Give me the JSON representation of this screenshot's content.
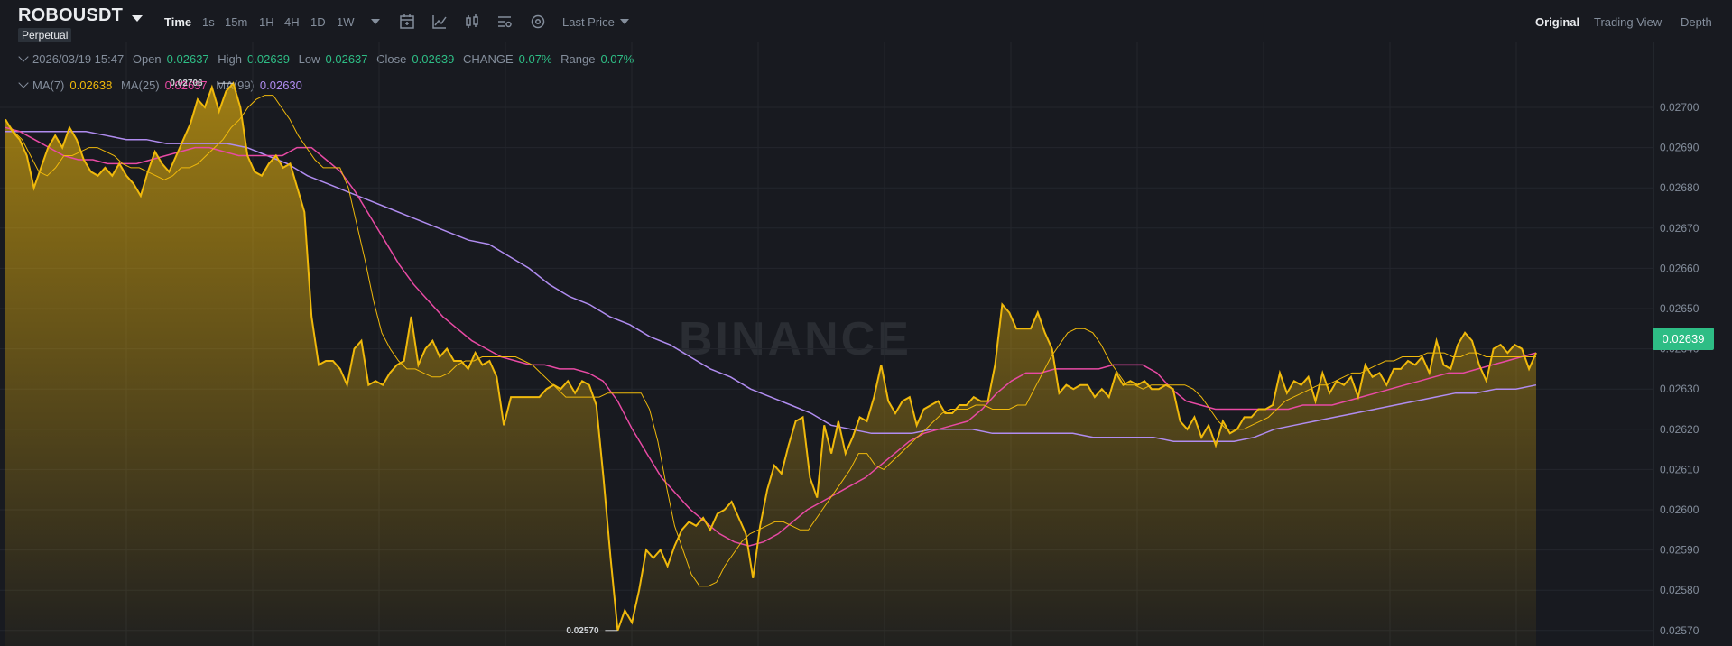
{
  "header": {
    "symbol": "ROBOUSDT",
    "badge": "Perpetual",
    "time_label": "Time",
    "intervals": [
      "1s",
      "15m",
      "1H",
      "4H",
      "1D",
      "1W"
    ],
    "last_price_label": "Last Price",
    "views": [
      "Original",
      "Trading View",
      "Depth"
    ],
    "active_view": "Original"
  },
  "legend": {
    "datetime": "2026/03/19 15:47",
    "open_label": "Open",
    "open": "0.02637",
    "high_label": "High",
    "high": "0.02639",
    "low_label": "Low",
    "low": "0.02637",
    "close_label": "Close",
    "close": "0.02639",
    "change_label": "CHANGE",
    "change": "0.07%",
    "range_label": "Range",
    "range": "0.07%",
    "ma7_label": "MA(7)",
    "ma7": "0.02638",
    "ma25_label": "MA(25)",
    "ma25": "0.02637",
    "ma99_label": "MA(99)",
    "ma99": "0.02630"
  },
  "watermark": "BINANCE",
  "current_price": "0.02639",
  "max_label": "0.02706",
  "min_label": "0.02570",
  "colors": {
    "accent": "#f0b90b",
    "up": "#2ebd85",
    "ma25": "#e84aa4",
    "ma99": "#b08cf0",
    "bg": "#181a20"
  },
  "chart_data": {
    "type": "area",
    "ylim": [
      0.02565,
      0.0271
    ],
    "yticks": [
      "0.02700",
      "0.02690",
      "0.02680",
      "0.02670",
      "0.02660",
      "0.02650",
      "0.02640",
      "0.02630",
      "0.02620",
      "0.02610",
      "0.02600",
      "0.02590",
      "0.02580",
      "0.02570"
    ],
    "price": [
      0.02697,
      0.02694,
      0.02692,
      0.02688,
      0.0268,
      0.02685,
      0.0269,
      0.02693,
      0.0269,
      0.02695,
      0.02692,
      0.02687,
      0.02684,
      0.02683,
      0.02685,
      0.02683,
      0.02686,
      0.02683,
      0.02681,
      0.02678,
      0.02684,
      0.02689,
      0.02686,
      0.02684,
      0.02688,
      0.02692,
      0.02696,
      0.02702,
      0.027,
      0.02705,
      0.02699,
      0.02704,
      0.02706,
      0.027,
      0.02688,
      0.02684,
      0.02683,
      0.02686,
      0.02688,
      0.02685,
      0.02686,
      0.0268,
      0.02674,
      0.02648,
      0.02636,
      0.02637,
      0.02637,
      0.02635,
      0.02631,
      0.0264,
      0.02642,
      0.02631,
      0.02632,
      0.02631,
      0.02634,
      0.02636,
      0.02637,
      0.02648,
      0.02636,
      0.0264,
      0.02642,
      0.02638,
      0.0264,
      0.02637,
      0.02637,
      0.02635,
      0.02639,
      0.02636,
      0.02637,
      0.02633,
      0.02621,
      0.02628,
      0.02628,
      0.02628,
      0.02628,
      0.02628,
      0.0263,
      0.02631,
      0.0263,
      0.02632,
      0.02629,
      0.02632,
      0.02631,
      0.02626,
      0.02608,
      0.02588,
      0.0257,
      0.02575,
      0.02572,
      0.0258,
      0.0259,
      0.02588,
      0.0259,
      0.02586,
      0.02591,
      0.02595,
      0.02597,
      0.02596,
      0.02598,
      0.02595,
      0.02599,
      0.026,
      0.02602,
      0.02598,
      0.02594,
      0.02583,
      0.02596,
      0.02605,
      0.02611,
      0.02609,
      0.02616,
      0.02622,
      0.02623,
      0.02608,
      0.02603,
      0.02621,
      0.02614,
      0.02622,
      0.02614,
      0.02618,
      0.02623,
      0.02622,
      0.02628,
      0.02636,
      0.02627,
      0.02624,
      0.02627,
      0.02628,
      0.02621,
      0.02625,
      0.02626,
      0.02627,
      0.02624,
      0.02624,
      0.02626,
      0.02626,
      0.02628,
      0.02627,
      0.02627,
      0.02636,
      0.02651,
      0.02649,
      0.02645,
      0.02645,
      0.02645,
      0.02649,
      0.02644,
      0.0264,
      0.02629,
      0.02631,
      0.0263,
      0.02631,
      0.02631,
      0.02628,
      0.0263,
      0.02628,
      0.02634,
      0.02631,
      0.02632,
      0.02631,
      0.02632,
      0.0263,
      0.0263,
      0.02631,
      0.0263,
      0.02622,
      0.0262,
      0.02623,
      0.02618,
      0.02621,
      0.02616,
      0.02622,
      0.02619,
      0.0262,
      0.02623,
      0.02623,
      0.02625,
      0.02625,
      0.02626,
      0.02634,
      0.02629,
      0.02632,
      0.02631,
      0.02633,
      0.02627,
      0.02634,
      0.02629,
      0.02632,
      0.02631,
      0.02633,
      0.02628,
      0.02636,
      0.02633,
      0.02634,
      0.02631,
      0.02635,
      0.02635,
      0.02637,
      0.02636,
      0.02638,
      0.02634,
      0.02642,
      0.02636,
      0.02635,
      0.02641,
      0.02644,
      0.02642,
      0.02636,
      0.02632,
      0.0264,
      0.02641,
      0.02639,
      0.02641,
      0.0264,
      0.02635,
      0.02639
    ],
    "ma7": [
      0.02697,
      0.02694,
      0.02692,
      0.02688,
      0.02684,
      0.02683,
      0.02685,
      0.02688,
      0.02688,
      0.02689,
      0.0269,
      0.0269,
      0.02689,
      0.02688,
      0.02686,
      0.02685,
      0.02685,
      0.02684,
      0.02683,
      0.02682,
      0.02683,
      0.02685,
      0.02685,
      0.02686,
      0.02688,
      0.0269,
      0.02692,
      0.02695,
      0.02697,
      0.027,
      0.02702,
      0.02703,
      0.02703,
      0.027,
      0.02697,
      0.02693,
      0.0269,
      0.02687,
      0.02685,
      0.02685,
      0.02685,
      0.0268,
      0.02671,
      0.02662,
      0.02652,
      0.02644,
      0.0264,
      0.02637,
      0.02635,
      0.02635,
      0.02634,
      0.02633,
      0.02633,
      0.02634,
      0.02636,
      0.02637,
      0.02637,
      0.02638,
      0.02638,
      0.02638,
      0.02638,
      0.02638,
      0.02637,
      0.02636,
      0.02634,
      0.02632,
      0.0263,
      0.02628,
      0.02628,
      0.02628,
      0.02628,
      0.02628,
      0.02629,
      0.02629,
      0.02629,
      0.02629,
      0.02629,
      0.02625,
      0.02617,
      0.02606,
      0.02596,
      0.0259,
      0.02584,
      0.02581,
      0.02581,
      0.02582,
      0.02586,
      0.02589,
      0.02592,
      0.02594,
      0.02595,
      0.02596,
      0.02597,
      0.02597,
      0.02596,
      0.02595,
      0.02595,
      0.02598,
      0.02601,
      0.02604,
      0.02607,
      0.0261,
      0.02614,
      0.02614,
      0.02611,
      0.0261,
      0.02612,
      0.02614,
      0.02616,
      0.02618,
      0.0262,
      0.02622,
      0.02624,
      0.02625,
      0.02625,
      0.02625,
      0.02626,
      0.02626,
      0.02625,
      0.02625,
      0.02625,
      0.02626,
      0.02626,
      0.0263,
      0.02634,
      0.02638,
      0.02641,
      0.02644,
      0.02645,
      0.02645,
      0.02644,
      0.02641,
      0.02637,
      0.02634,
      0.02631,
      0.02631,
      0.0263,
      0.02631,
      0.02631,
      0.02631,
      0.02631,
      0.02631,
      0.0263,
      0.02628,
      0.02625,
      0.02622,
      0.0262,
      0.0262,
      0.0262,
      0.02621,
      0.02622,
      0.02623,
      0.02625,
      0.02627,
      0.02628,
      0.02629,
      0.0263,
      0.02631,
      0.02631,
      0.02632,
      0.02633,
      0.02634,
      0.02634,
      0.02635,
      0.02636,
      0.02637,
      0.02637,
      0.02638,
      0.02638,
      0.02638,
      0.02639,
      0.02639,
      0.02639,
      0.02638,
      0.02638,
      0.02639,
      0.02639,
      0.02638,
      0.02638,
      0.02638,
      0.02638,
      0.02638,
      0.02638,
      0.02638
    ],
    "ma25": [
      0.02695,
      0.02694,
      0.02692,
      0.0269,
      0.02688,
      0.02687,
      0.02687,
      0.02686,
      0.02686,
      0.02686,
      0.02687,
      0.02688,
      0.02689,
      0.0269,
      0.0269,
      0.02689,
      0.02688,
      0.02688,
      0.02688,
      0.02688,
      0.0269,
      0.0269,
      0.02687,
      0.02684,
      0.02679,
      0.02673,
      0.02667,
      0.02661,
      0.02656,
      0.02652,
      0.02648,
      0.02645,
      0.02642,
      0.0264,
      0.02638,
      0.02637,
      0.02636,
      0.02636,
      0.02635,
      0.02635,
      0.02634,
      0.02632,
      0.02627,
      0.0262,
      0.02614,
      0.02608,
      0.02604,
      0.026,
      0.02597,
      0.02594,
      0.02592,
      0.02591,
      0.02592,
      0.02594,
      0.02597,
      0.026,
      0.02602,
      0.02604,
      0.02606,
      0.02608,
      0.02611,
      0.02614,
      0.02617,
      0.02619,
      0.0262,
      0.02621,
      0.02622,
      0.02625,
      0.02629,
      0.02632,
      0.02634,
      0.02634,
      0.02635,
      0.02635,
      0.02635,
      0.02635,
      0.02636,
      0.02636,
      0.02636,
      0.02634,
      0.0263,
      0.02627,
      0.02626,
      0.02625,
      0.02625,
      0.02625,
      0.02625,
      0.02625,
      0.02625,
      0.02626,
      0.02626,
      0.02626,
      0.02627,
      0.02628,
      0.02629,
      0.0263,
      0.02631,
      0.02632,
      0.02633,
      0.02634,
      0.02634,
      0.02635,
      0.02636,
      0.02637,
      0.02638,
      0.02639
    ],
    "ma99": [
      0.02694,
      0.02694,
      0.02694,
      0.02694,
      0.02694,
      0.02693,
      0.02692,
      0.02692,
      0.02691,
      0.02691,
      0.02691,
      0.02691,
      0.0269,
      0.02688,
      0.02686,
      0.02683,
      0.02681,
      0.02679,
      0.02677,
      0.02675,
      0.02673,
      0.02671,
      0.02669,
      0.02667,
      0.02666,
      0.02663,
      0.0266,
      0.02656,
      0.02653,
      0.02651,
      0.02648,
      0.02646,
      0.02643,
      0.02641,
      0.02638,
      0.02635,
      0.02633,
      0.0263,
      0.02628,
      0.02626,
      0.02624,
      0.02621,
      0.0262,
      0.02619,
      0.02619,
      0.02619,
      0.0262,
      0.0262,
      0.0262,
      0.02619,
      0.02619,
      0.02619,
      0.02619,
      0.02619,
      0.02618,
      0.02618,
      0.02618,
      0.02618,
      0.02617,
      0.02617,
      0.02617,
      0.02617,
      0.02618,
      0.0262,
      0.02621,
      0.02622,
      0.02623,
      0.02624,
      0.02625,
      0.02626,
      0.02627,
      0.02628,
      0.02629,
      0.02629,
      0.0263,
      0.0263,
      0.02631
    ]
  }
}
